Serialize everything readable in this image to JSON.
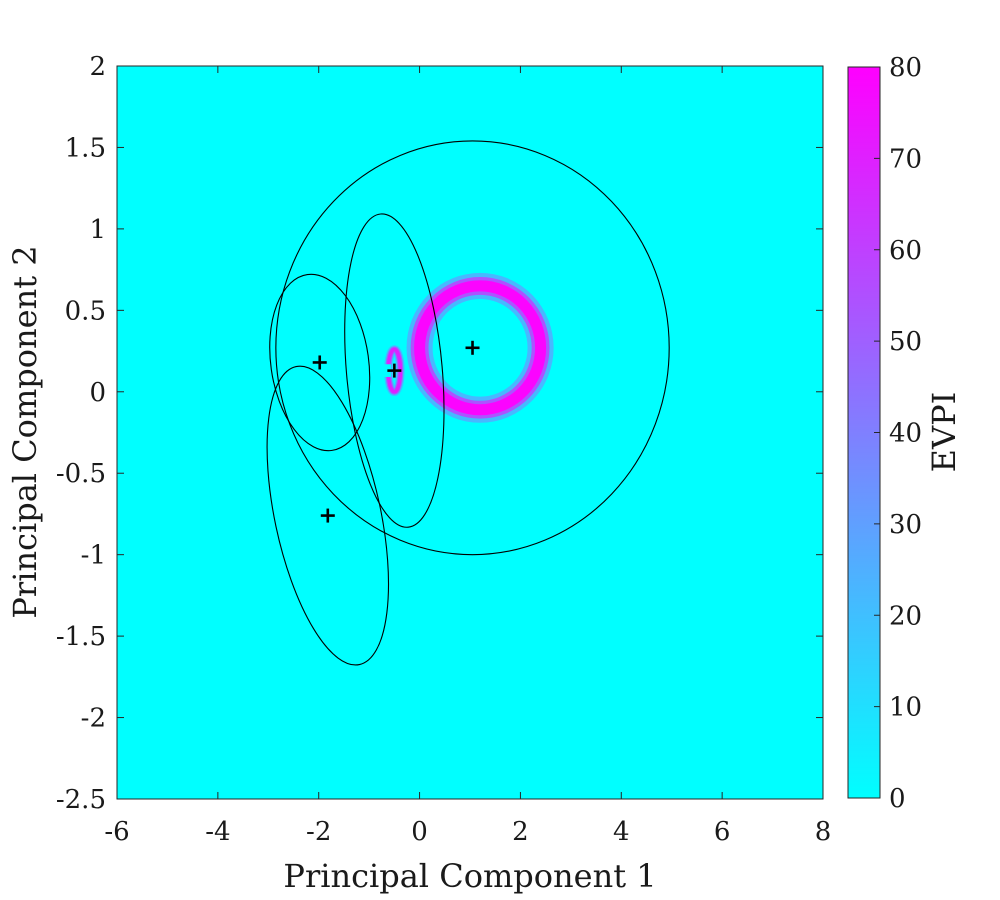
{
  "chart_data": {
    "type": "heatmap",
    "title": "",
    "xlabel": "Principal Component 1",
    "ylabel": "Principal Component 2",
    "xlim": [
      -6,
      8
    ],
    "ylim": [
      -2.5,
      2
    ],
    "xticks": [
      "-6",
      "-4",
      "-2",
      "0",
      "2",
      "4",
      "6",
      "8"
    ],
    "yticks": [
      "-2.5",
      "-2",
      "-1.5",
      "-1",
      "-0.5",
      "0",
      "0.5",
      "1",
      "1.5",
      "2"
    ],
    "grid": false,
    "background_value": 0,
    "evpi_features": [
      {
        "shape": "ring",
        "center": [
          1.2,
          0.27
        ],
        "rx": 1.2,
        "ry": 0.38,
        "width_x": 0.27,
        "width_y": 0.085,
        "peak": 80
      },
      {
        "shape": "ring",
        "center": [
          -0.5,
          0.13
        ],
        "rx": 0.12,
        "ry": 0.13,
        "width_x": 0.08,
        "width_y": 0.03,
        "peak": 70,
        "open_side": "left"
      }
    ],
    "ellipses": [
      {
        "center": [
          1.05,
          0.27
        ],
        "rx": 3.9,
        "ry": 1.27,
        "angle_deg": 0
      },
      {
        "center": [
          -0.5,
          0.13
        ],
        "rx": 0.95,
        "ry": 0.965,
        "angle_deg": 5
      },
      {
        "center": [
          -1.98,
          0.18
        ],
        "rx": 0.97,
        "ry": 0.545,
        "angle_deg": 8
      },
      {
        "center": [
          -1.82,
          -0.76
        ],
        "rx": 1.05,
        "ry": 0.935,
        "angle_deg": 12
      }
    ],
    "centers": [
      {
        "x": 1.05,
        "y": 0.27
      },
      {
        "x": -0.5,
        "y": 0.13
      },
      {
        "x": -1.98,
        "y": 0.18
      },
      {
        "x": -1.82,
        "y": -0.76
      }
    ],
    "colorbar": {
      "label": "EVPI",
      "min": 0,
      "max": 80,
      "ticks": [
        "0",
        "10",
        "20",
        "30",
        "40",
        "50",
        "60",
        "70",
        "80"
      ],
      "color_low": "#00ffff",
      "color_high": "#ff00ff"
    }
  }
}
